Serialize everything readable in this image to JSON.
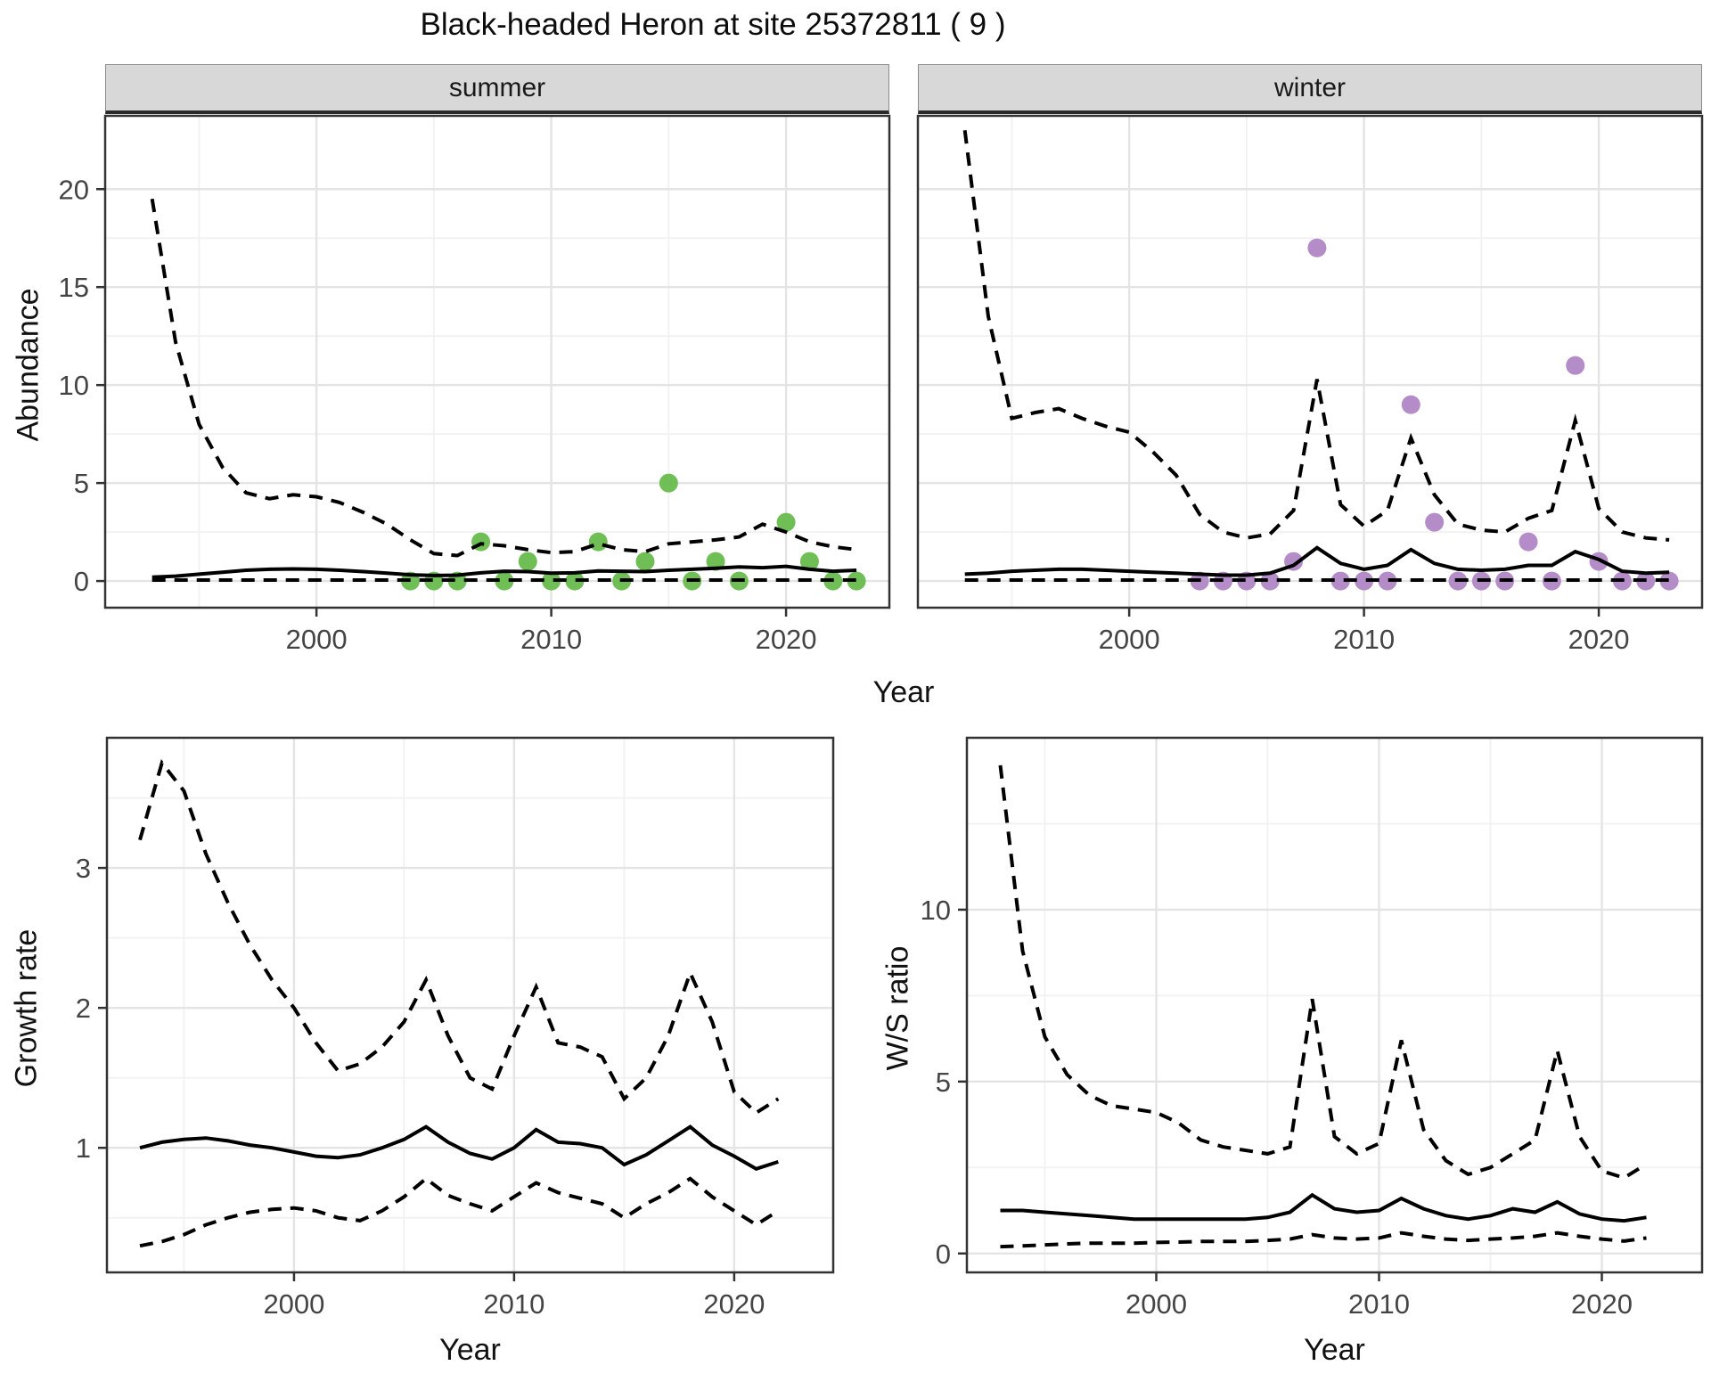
{
  "title": "Black-headed Heron at site 25372811 ( 9 )",
  "colors": {
    "summer_point": "#6fbe56",
    "winter_point": "#b48cc8",
    "line": "#000000",
    "grid_major": "#e4e4e4",
    "grid_minor": "#f1f1f1",
    "strip_bg": "#d8d8d8",
    "border": "#333333",
    "axis_text": "#444444"
  },
  "facets": [
    {
      "label": "summer"
    },
    {
      "label": "winter"
    }
  ],
  "axis_titles": {
    "top_x": "Year",
    "top_y": "Abundance",
    "bottom_left_x": "Year",
    "bottom_left_y": "Growth rate",
    "bottom_right_x": "Year",
    "bottom_right_y": "W/S ratio"
  },
  "chart_data": [
    {
      "name": "abundance-summer",
      "type": "line",
      "facet": "summer",
      "ylabel": "Abundance",
      "xlabel": "Year",
      "x_domain": [
        1991.0,
        2024.4
      ],
      "y_domain": [
        -1.36,
        23.74
      ],
      "x_ticks": [
        2000,
        2010,
        2020
      ],
      "x_minor": [
        1995,
        2005,
        2015
      ],
      "y_ticks": [
        0,
        5,
        10,
        15,
        20
      ],
      "y_minor": [
        2.5,
        7.5,
        12.5,
        17.5
      ],
      "years": [
        1993,
        1994,
        1995,
        1996,
        1997,
        1998,
        1999,
        2000,
        2001,
        2002,
        2003,
        2004,
        2005,
        2006,
        2007,
        2008,
        2009,
        2010,
        2011,
        2012,
        2013,
        2014,
        2015,
        2016,
        2017,
        2018,
        2019,
        2020,
        2021,
        2022,
        2023
      ],
      "series": [
        {
          "name": "upper_ci",
          "style": "dashed",
          "y": [
            19.5,
            12.2,
            8.0,
            5.8,
            4.5,
            4.2,
            4.4,
            4.3,
            4.0,
            3.5,
            2.9,
            2.1,
            1.4,
            1.3,
            1.9,
            1.8,
            1.6,
            1.45,
            1.5,
            1.9,
            1.6,
            1.5,
            1.9,
            2.0,
            2.1,
            2.25,
            2.9,
            2.5,
            2.0,
            1.75,
            1.6
          ]
        },
        {
          "name": "mean",
          "style": "solid",
          "y": [
            0.2,
            0.25,
            0.35,
            0.45,
            0.55,
            0.6,
            0.62,
            0.6,
            0.55,
            0.48,
            0.4,
            0.32,
            0.28,
            0.3,
            0.42,
            0.5,
            0.48,
            0.4,
            0.42,
            0.52,
            0.5,
            0.48,
            0.55,
            0.6,
            0.65,
            0.72,
            0.68,
            0.75,
            0.6,
            0.5,
            0.55
          ]
        },
        {
          "name": "lower_ci",
          "style": "dashed",
          "y": [
            0.05,
            0.05,
            0.05,
            0.05,
            0.05,
            0.05,
            0.05,
            0.05,
            0.05,
            0.05,
            0.05,
            0.05,
            0.05,
            0.05,
            0.05,
            0.05,
            0.05,
            0.05,
            0.05,
            0.05,
            0.05,
            0.05,
            0.05,
            0.05,
            0.05,
            0.05,
            0.05,
            0.05,
            0.05,
            0.05,
            0.05
          ]
        }
      ],
      "points": {
        "color_key": "summer_point",
        "x": [
          2004,
          2005,
          2006,
          2007,
          2008,
          2009,
          2010,
          2011,
          2012,
          2013,
          2014,
          2015,
          2016,
          2017,
          2018,
          2020,
          2021,
          2022,
          2023
        ],
        "y": [
          0,
          0,
          0,
          2,
          0,
          1,
          0,
          0,
          2,
          0,
          1,
          5,
          0,
          1,
          0,
          3,
          1,
          0,
          0
        ]
      }
    },
    {
      "name": "abundance-winter",
      "type": "line",
      "facet": "winter",
      "ylabel": "Abundance",
      "xlabel": "Year",
      "x_domain": [
        1991.0,
        2024.4
      ],
      "y_domain": [
        -1.36,
        23.74
      ],
      "x_ticks": [
        2000,
        2010,
        2020
      ],
      "x_minor": [
        1995,
        2005,
        2015
      ],
      "y_ticks": [
        0,
        5,
        10,
        15,
        20
      ],
      "y_minor": [
        2.5,
        7.5,
        12.5,
        17.5
      ],
      "years": [
        1993,
        1994,
        1995,
        1996,
        1997,
        1998,
        1999,
        2000,
        2001,
        2002,
        2003,
        2004,
        2005,
        2006,
        2007,
        2008,
        2009,
        2010,
        2011,
        2012,
        2013,
        2014,
        2015,
        2016,
        2017,
        2018,
        2019,
        2020,
        2021,
        2022,
        2023
      ],
      "series": [
        {
          "name": "upper_ci",
          "style": "dashed",
          "y": [
            23.0,
            13.5,
            8.3,
            8.6,
            8.8,
            8.3,
            7.9,
            7.6,
            6.6,
            5.4,
            3.4,
            2.5,
            2.2,
            2.4,
            3.6,
            10.3,
            3.9,
            2.8,
            3.6,
            7.3,
            4.4,
            2.9,
            2.6,
            2.5,
            3.2,
            3.6,
            8.2,
            3.7,
            2.5,
            2.2,
            2.1
          ]
        },
        {
          "name": "mean",
          "style": "solid",
          "y": [
            0.35,
            0.4,
            0.5,
            0.55,
            0.6,
            0.6,
            0.55,
            0.5,
            0.45,
            0.4,
            0.35,
            0.3,
            0.3,
            0.4,
            0.8,
            1.7,
            0.9,
            0.6,
            0.8,
            1.6,
            0.9,
            0.6,
            0.55,
            0.6,
            0.8,
            0.8,
            1.5,
            1.1,
            0.5,
            0.4,
            0.45
          ]
        },
        {
          "name": "lower_ci",
          "style": "dashed",
          "y": [
            0.05,
            0.05,
            0.05,
            0.05,
            0.05,
            0.05,
            0.05,
            0.05,
            0.05,
            0.05,
            0.05,
            0.05,
            0.05,
            0.05,
            0.05,
            0.05,
            0.05,
            0.05,
            0.05,
            0.05,
            0.05,
            0.05,
            0.05,
            0.05,
            0.05,
            0.05,
            0.05,
            0.05,
            0.05,
            0.05,
            0.05
          ]
        }
      ],
      "points": {
        "color_key": "winter_point",
        "x": [
          2003,
          2004,
          2005,
          2006,
          2007,
          2008,
          2009,
          2010,
          2011,
          2012,
          2013,
          2014,
          2015,
          2016,
          2017,
          2018,
          2019,
          2020,
          2021,
          2022,
          2023
        ],
        "y": [
          0,
          0,
          0,
          0,
          1,
          17,
          0,
          0,
          0,
          9,
          3,
          0,
          0,
          0,
          2,
          0,
          11,
          1,
          0,
          0,
          0
        ]
      }
    },
    {
      "name": "growth-rate",
      "type": "line",
      "ylabel": "Growth rate",
      "xlabel": "Year",
      "x_domain": [
        1991.5,
        2024.5
      ],
      "y_domain": [
        0.11,
        3.93
      ],
      "x_ticks": [
        2000,
        2010,
        2020
      ],
      "x_minor": [
        1995,
        2005,
        2015
      ],
      "y_ticks": [
        1,
        2,
        3
      ],
      "y_minor": [
        0.5,
        1.5,
        2.5,
        3.5
      ],
      "years": [
        1993,
        1994,
        1995,
        1996,
        1997,
        1998,
        1999,
        2000,
        2001,
        2002,
        2003,
        2004,
        2005,
        2006,
        2007,
        2008,
        2009,
        2010,
        2011,
        2012,
        2013,
        2014,
        2015,
        2016,
        2017,
        2018,
        2019,
        2020,
        2021,
        2022
      ],
      "series": [
        {
          "name": "upper_ci",
          "style": "dashed",
          "y": [
            3.2,
            3.75,
            3.55,
            3.1,
            2.75,
            2.45,
            2.2,
            2.0,
            1.75,
            1.55,
            1.6,
            1.72,
            1.9,
            2.2,
            1.8,
            1.5,
            1.42,
            1.8,
            2.15,
            1.75,
            1.72,
            1.65,
            1.35,
            1.5,
            1.8,
            2.25,
            1.9,
            1.4,
            1.25,
            1.35
          ]
        },
        {
          "name": "mean",
          "style": "solid",
          "y": [
            1.0,
            1.04,
            1.06,
            1.07,
            1.05,
            1.02,
            1.0,
            0.97,
            0.94,
            0.93,
            0.95,
            1.0,
            1.06,
            1.15,
            1.04,
            0.96,
            0.92,
            1.0,
            1.13,
            1.04,
            1.03,
            1.0,
            0.88,
            0.95,
            1.05,
            1.15,
            1.02,
            0.94,
            0.85,
            0.9
          ]
        },
        {
          "name": "lower_ci",
          "style": "dashed",
          "y": [
            0.3,
            0.33,
            0.38,
            0.45,
            0.5,
            0.54,
            0.56,
            0.57,
            0.55,
            0.5,
            0.48,
            0.55,
            0.65,
            0.78,
            0.66,
            0.6,
            0.55,
            0.65,
            0.75,
            0.68,
            0.64,
            0.6,
            0.5,
            0.6,
            0.68,
            0.78,
            0.65,
            0.55,
            0.45,
            0.55
          ]
        }
      ],
      "points": {
        "color_key": "summer_point",
        "x": [],
        "y": []
      }
    },
    {
      "name": "ws-ratio",
      "type": "line",
      "ylabel": "W/S ratio",
      "xlabel": "Year",
      "x_domain": [
        1991.5,
        2024.5
      ],
      "y_domain": [
        -0.55,
        15.0
      ],
      "x_ticks": [
        2000,
        2010,
        2020
      ],
      "x_minor": [
        1995,
        2005,
        2015
      ],
      "y_ticks": [
        0,
        5,
        10
      ],
      "y_minor": [
        2.5,
        7.5,
        12.5
      ],
      "years": [
        1993,
        1994,
        1995,
        1996,
        1997,
        1998,
        1999,
        2000,
        2001,
        2002,
        2003,
        2004,
        2005,
        2006,
        2007,
        2008,
        2009,
        2010,
        2011,
        2012,
        2013,
        2014,
        2015,
        2016,
        2017,
        2018,
        2019,
        2020,
        2021,
        2022
      ],
      "series": [
        {
          "name": "upper_ci",
          "style": "dashed",
          "y": [
            14.2,
            8.8,
            6.3,
            5.2,
            4.6,
            4.3,
            4.2,
            4.1,
            3.8,
            3.3,
            3.1,
            3.0,
            2.9,
            3.1,
            7.4,
            3.4,
            2.9,
            3.2,
            6.2,
            3.6,
            2.7,
            2.3,
            2.5,
            2.9,
            3.3,
            5.9,
            3.4,
            2.4,
            2.2,
            2.6
          ]
        },
        {
          "name": "mean",
          "style": "solid",
          "y": [
            1.25,
            1.25,
            1.2,
            1.15,
            1.1,
            1.05,
            1.0,
            1.0,
            1.0,
            1.0,
            1.0,
            1.0,
            1.05,
            1.2,
            1.7,
            1.3,
            1.2,
            1.25,
            1.6,
            1.3,
            1.1,
            1.0,
            1.1,
            1.3,
            1.2,
            1.5,
            1.15,
            1.0,
            0.95,
            1.05
          ]
        },
        {
          "name": "lower_ci",
          "style": "dashed",
          "y": [
            0.2,
            0.22,
            0.25,
            0.28,
            0.3,
            0.3,
            0.3,
            0.32,
            0.33,
            0.35,
            0.35,
            0.35,
            0.38,
            0.42,
            0.55,
            0.45,
            0.42,
            0.45,
            0.6,
            0.5,
            0.42,
            0.38,
            0.42,
            0.45,
            0.5,
            0.6,
            0.5,
            0.42,
            0.36,
            0.45
          ]
        }
      ],
      "points": {
        "color_key": "winter_point",
        "x": [],
        "y": []
      }
    }
  ]
}
